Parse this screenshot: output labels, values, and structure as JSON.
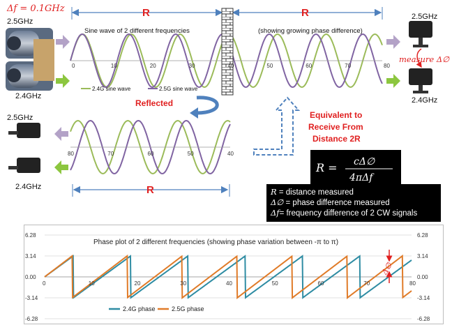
{
  "top": {
    "delta_f_label": "Δf = 0.1GHz",
    "freq_high": "2.5GHz",
    "freq_low": "2.4GHz",
    "range_label": "R",
    "left_note": "Sine wave of 2 different frequencies",
    "right_note": "(showing growing phase difference)",
    "measure_label": "measure Δ∅",
    "reflected_label": "Reflected",
    "equivalent_text": [
      "Equivalent to",
      "Receive From",
      "Distance 2R"
    ],
    "legend_2_4": "2.4G sine wave",
    "legend_2_5": "2.5G sine wave",
    "top_ticks": [
      "0",
      "10",
      "20",
      "30",
      "40",
      "50",
      "60",
      "70",
      "80"
    ],
    "bottom_ticks": [
      "80",
      "70",
      "60",
      "50",
      "40"
    ]
  },
  "formula": {
    "lhs": "R =",
    "numerator": "cΔ∅",
    "denominator": "4πΔf"
  },
  "definitions": [
    {
      "symbol": "R",
      "text": " = distance measured"
    },
    {
      "symbol": "Δ∅",
      "text": " = phase difference measured"
    },
    {
      "symbol": "Δf",
      "text": "= frequency difference of 2 CW signals"
    }
  ],
  "chart_data": {
    "type": "line",
    "title": "Phase plot of 2 different frequencies (showing phase variation between -π to π)",
    "x_ticks": [
      "0",
      "10",
      "20",
      "30",
      "40",
      "50",
      "60",
      "70",
      "80"
    ],
    "y_ticks_left": [
      "6.28",
      "3.14",
      "0.00",
      "-3.14",
      "-6.28"
    ],
    "y_ticks_right": [
      "6.28",
      "3.14",
      "0.00",
      "-3.14",
      "-6.28"
    ],
    "ylim": [
      -6.28,
      6.28
    ],
    "xlim": [
      0,
      80
    ],
    "series": [
      {
        "name": "2.4G phase",
        "color": "#2e8ca3",
        "period_x": 12.5
      },
      {
        "name": "2.5G phase",
        "color": "#e07b28",
        "period_x": 12.0
      }
    ],
    "annotation": "Δ∅"
  },
  "colors": {
    "green_wave": "#9bbb59",
    "purple_wave": "#8064a2",
    "red_text": "#e02020",
    "blue_arrow": "#4f81bd",
    "arrow_purple": "#b3a2c7",
    "arrow_green": "#8cc63f"
  }
}
